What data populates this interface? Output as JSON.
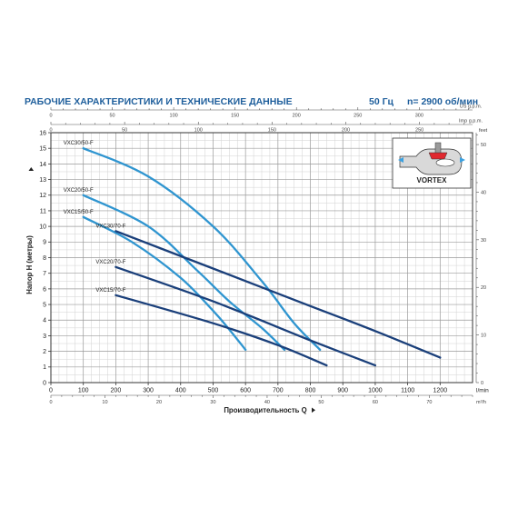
{
  "header": {
    "title": "РАБОЧИЕ ХАРАКТЕРИСТИКИ И ТЕХНИЧЕСКИЕ ДАННЫЕ",
    "frequency": "50 Гц",
    "speed": "n= 2900 об/мин"
  },
  "colors": {
    "title": "#1f5f9c",
    "grid_major": "#9a9a9a",
    "grid_minor": "#d2d2d2",
    "curve_light": "#2f95d0",
    "curve_dark": "#1a3f7a",
    "text": "#222222"
  },
  "inset": {
    "label": "VORTEX",
    "icon": "vortex-impeller-icon"
  },
  "chart_data": {
    "type": "line",
    "xlabel": "Производительность Q",
    "ylabel": "Напор H (метры)",
    "x_unit": "l/min",
    "xlim": [
      0,
      1300
    ],
    "ylim": [
      0,
      16
    ],
    "grid": true,
    "x_ticks": [
      0,
      100,
      200,
      300,
      400,
      500,
      600,
      700,
      800,
      900,
      1000,
      1100,
      1200
    ],
    "y_ticks": [
      0,
      1,
      2,
      3,
      4,
      5,
      6,
      7,
      8,
      9,
      10,
      11,
      12,
      13,
      14,
      15,
      16
    ],
    "top_axes": [
      {
        "unit": "US g.p.m.",
        "ticks": [
          0,
          50,
          100,
          150,
          200,
          250,
          300
        ]
      },
      {
        "unit": "Imp g.p.m.",
        "ticks": [
          0,
          50,
          100,
          150,
          200,
          250
        ]
      }
    ],
    "bottom_axis2": {
      "unit": "m³/h",
      "ticks": [
        0,
        10,
        20,
        30,
        40,
        50,
        60,
        70
      ]
    },
    "right_axis": {
      "unit": "feet",
      "ticks": [
        0,
        10,
        20,
        30,
        40,
        50
      ]
    },
    "series": [
      {
        "name": "VXC30/50-F",
        "style": "light",
        "points": [
          [
            100,
            15
          ],
          [
            300,
            13.2
          ],
          [
            500,
            10
          ],
          [
            650,
            6.5
          ],
          [
            750,
            3.8
          ],
          [
            830,
            2.1
          ]
        ]
      },
      {
        "name": "VXC20/50-F",
        "style": "light",
        "points": [
          [
            100,
            12
          ],
          [
            300,
            10
          ],
          [
            450,
            7.2
          ],
          [
            550,
            5.2
          ],
          [
            650,
            3.5
          ],
          [
            720,
            2.1
          ]
        ]
      },
      {
        "name": "VXC15/50-F",
        "style": "light",
        "points": [
          [
            100,
            10.6
          ],
          [
            250,
            9
          ],
          [
            400,
            6.7
          ],
          [
            500,
            4.6
          ],
          [
            550,
            3.4
          ],
          [
            600,
            2.1
          ]
        ]
      },
      {
        "name": "VXC30/70-F",
        "style": "dark",
        "points": [
          [
            200,
            9.7
          ],
          [
            500,
            7.3
          ],
          [
            800,
            4.9
          ],
          [
            1000,
            3.3
          ],
          [
            1200,
            1.6
          ]
        ]
      },
      {
        "name": "VXC20/70-F",
        "style": "dark",
        "points": [
          [
            200,
            7.4
          ],
          [
            500,
            5.2
          ],
          [
            800,
            2.7
          ],
          [
            1000,
            1.1
          ]
        ]
      },
      {
        "name": "VXC15/70-F",
        "style": "dark",
        "points": [
          [
            200,
            5.6
          ],
          [
            500,
            3.8
          ],
          [
            700,
            2.4
          ],
          [
            850,
            1.1
          ]
        ]
      }
    ]
  }
}
